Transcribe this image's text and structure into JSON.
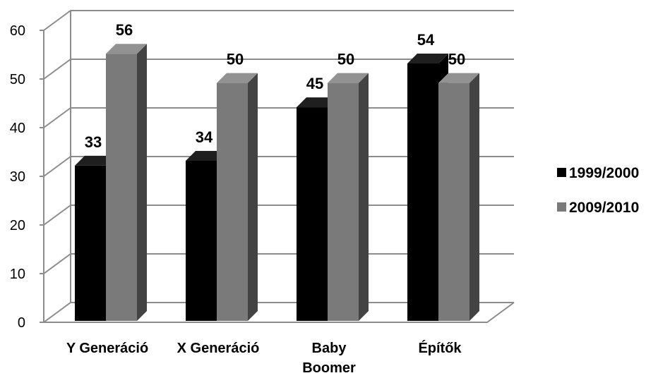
{
  "chart_data": {
    "type": "bar",
    "categories": [
      "Y Generáció",
      "X Generáció",
      "Baby Boomer",
      "Építők"
    ],
    "category_lines": [
      [
        "Y Generáció"
      ],
      [
        "X Generáció"
      ],
      [
        "Baby",
        "Boomer"
      ],
      [
        "Építők"
      ]
    ],
    "series": [
      {
        "name": "1999/2000",
        "values": [
          33,
          34,
          45,
          54
        ],
        "color": "#000000"
      },
      {
        "name": "2009/2010",
        "values": [
          56,
          50,
          50,
          50
        ],
        "color": "#7a7a7a"
      }
    ],
    "ylim": [
      0,
      60
    ],
    "yticks": [
      0,
      10,
      20,
      30,
      40,
      50,
      60
    ],
    "grid": true,
    "legend_position": "right",
    "style": "3d-column"
  }
}
